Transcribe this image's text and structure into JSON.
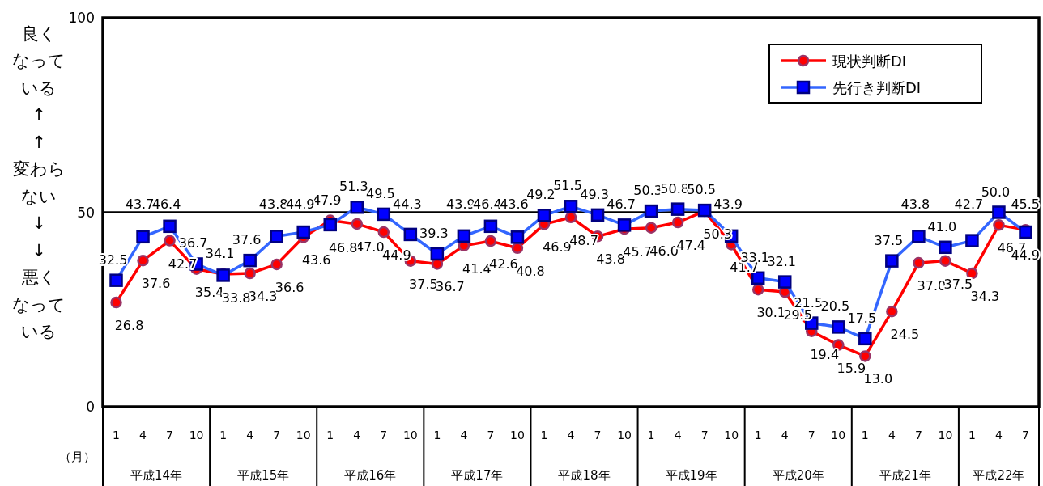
{
  "chart_data": {
    "type": "line",
    "xlabel": "（月）",
    "categories": [
      "1",
      "4",
      "7",
      "10",
      "1",
      "4",
      "7",
      "10",
      "1",
      "4",
      "7",
      "10",
      "1",
      "4",
      "7",
      "10",
      "1",
      "4",
      "7",
      "10",
      "1",
      "4",
      "7",
      "10",
      "1",
      "4",
      "7",
      "10",
      "1",
      "4",
      "7",
      "10",
      "1",
      "4",
      "7"
    ],
    "annotations": [
      "良く",
      "なって",
      "いる",
      "↑",
      "↑",
      "変わら",
      "ない",
      "↓",
      "↓",
      "悪く",
      "なって",
      "いる",
      "平成14年",
      "平成15年",
      "平成16年",
      "平成17年",
      "平成18年",
      "平成19年",
      "平成20年",
      "平成21年",
      "平成22年"
    ],
    "series": [
      {
        "name": "現状判断DI",
        "color": "#ff0000",
        "marker": "circle",
        "values": [
          26.8,
          37.6,
          42.7,
          35.4,
          34.1,
          34.3,
          36.6,
          43.6,
          47.9,
          47.0,
          44.9,
          37.5,
          36.7,
          41.4,
          42.6,
          40.8,
          46.9,
          48.7,
          43.8,
          45.7,
          46.0,
          47.4,
          50.3,
          41.7,
          30.1,
          29.5,
          19.4,
          15.9,
          13.0,
          24.5,
          37.0,
          37.5,
          34.3,
          46.7,
          45.5
        ],
        "value_labels": [
          "26.8",
          "37.6",
          "42.7",
          "35.4",
          "34.1",
          "34.3",
          "36.6",
          "43.6",
          "47.9",
          "47.0",
          "44.9",
          "37.5",
          "36.7",
          "41.4",
          "42.6",
          "40.8",
          "46.9",
          "48.7",
          "43.8",
          "45.7",
          "46.0",
          "47.4",
          "50.3",
          "41.7",
          "30.1",
          "29.5",
          "19.4",
          "15.9",
          "13.0",
          "24.5",
          "37.0",
          "37.5",
          "34.3",
          "46.7",
          "45.5"
        ]
      },
      {
        "name": "先行き判断DI",
        "color": "#3366ff",
        "marker": "square",
        "values": [
          32.5,
          43.7,
          46.4,
          36.7,
          33.8,
          37.6,
          43.8,
          44.9,
          46.8,
          51.3,
          49.5,
          44.3,
          39.3,
          43.9,
          46.4,
          43.6,
          49.2,
          51.5,
          49.3,
          46.7,
          50.3,
          50.8,
          50.5,
          43.9,
          33.1,
          32.1,
          21.5,
          20.5,
          17.5,
          37.5,
          43.8,
          41.0,
          42.7,
          50.0,
          44.9
        ],
        "value_labels": [
          "32.5",
          "43.7",
          "46.4",
          "36.7",
          "33.8",
          "37.6",
          "43.8",
          "44.9",
          "46.8",
          "51.3",
          "49.5",
          "44.3",
          "39.3",
          "43.9",
          "46.4",
          "43.6",
          "49.2",
          "51.5",
          "49.3",
          "46.7",
          "50.3",
          "50.8",
          "50.5",
          "43.9",
          "33.1",
          "32.1",
          "21.5",
          "20.5",
          "17.5",
          "37.5",
          "43.8",
          "41.0",
          "42.7",
          "50.0",
          "44.9"
        ]
      }
    ],
    "ylim": [
      0,
      100
    ],
    "yticks": [
      0,
      50,
      100
    ],
    "ref_lines": [
      {
        "axis": "y",
        "value": 50,
        "color": "#000000"
      }
    ],
    "legend": "top right",
    "line_style": "solid"
  }
}
